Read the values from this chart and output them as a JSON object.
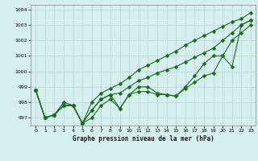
{
  "xlabel": "Graphe pression niveau de la mer (hPa)",
  "x": [
    0,
    1,
    2,
    3,
    4,
    5,
    6,
    7,
    8,
    9,
    10,
    11,
    12,
    13,
    14,
    15,
    16,
    17,
    18,
    19,
    20,
    21,
    22,
    23
  ],
  "series": [
    [
      998.8,
      997.0,
      997.2,
      997.8,
      997.8,
      996.65,
      998.0,
      998.6,
      998.9,
      999.2,
      999.6,
      1000.1,
      1000.4,
      1000.7,
      1001.0,
      1001.3,
      1001.7,
      1002.0,
      1002.3,
      1002.6,
      1002.9,
      1003.2,
      1003.4,
      1003.8
    ],
    [
      998.8,
      997.0,
      997.2,
      997.8,
      997.8,
      996.65,
      997.5,
      998.2,
      998.5,
      998.6,
      999.0,
      999.4,
      999.6,
      999.9,
      1000.1,
      1000.3,
      1000.6,
      1000.9,
      1001.2,
      1001.5,
      1002.0,
      1002.5,
      1003.0,
      1003.3
    ],
    [
      998.8,
      997.0,
      997.2,
      997.8,
      997.8,
      996.65,
      997.5,
      998.2,
      998.5,
      997.6,
      998.5,
      999.0,
      999.0,
      998.6,
      998.5,
      998.4,
      999.0,
      999.7,
      1000.5,
      1001.0,
      1001.0,
      1000.3,
      1003.0,
      1003.3
    ],
    [
      998.8,
      997.0,
      997.2,
      998.0,
      997.8,
      996.65,
      997.0,
      997.8,
      998.2,
      997.6,
      998.5,
      998.7,
      998.7,
      998.5,
      998.5,
      998.4,
      998.9,
      999.3,
      999.7,
      999.9,
      1001.0,
      1002.0,
      1002.5,
      1003.0
    ]
  ],
  "line_color": "#1a6b1a",
  "marker": "D",
  "marker_size": 2.5,
  "bg_color": "#d6f0f0",
  "grid_color": "#b8d4d4",
  "ylim": [
    996.5,
    1004.3
  ],
  "yticks": [
    997,
    998,
    999,
    1000,
    1001,
    1002,
    1003,
    1004
  ],
  "xticks": [
    0,
    1,
    2,
    3,
    4,
    5,
    6,
    7,
    8,
    9,
    10,
    11,
    12,
    13,
    14,
    15,
    16,
    17,
    18,
    19,
    20,
    21,
    22,
    23
  ]
}
